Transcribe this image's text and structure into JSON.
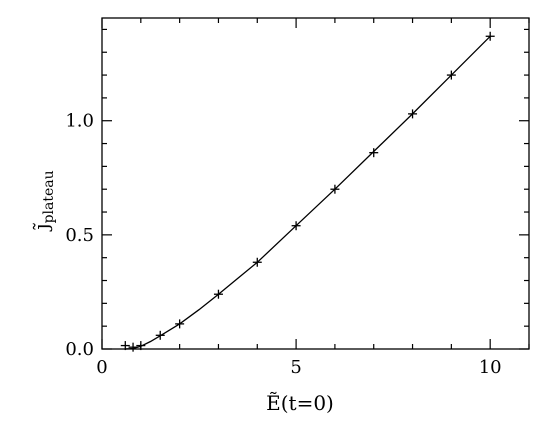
{
  "chart_data": {
    "type": "scatter",
    "title": "",
    "xlabel": "Ẽ(t=0)",
    "ylabel_main": "j̃",
    "ylabel_sub": "plateau",
    "xlim": [
      0,
      11
    ],
    "ylim": [
      0,
      1.45
    ],
    "x_ticks": [
      {
        "value": 0,
        "label": "0"
      },
      {
        "value": 5,
        "label": "5"
      },
      {
        "value": 10,
        "label": "10"
      }
    ],
    "y_ticks": [
      {
        "value": 0,
        "label": "0.0"
      },
      {
        "value": 0.5,
        "label": "0.5"
      },
      {
        "value": 1.0,
        "label": "1.0"
      }
    ],
    "x_minor_step": 1,
    "y_minor_step": 0.1,
    "grid": false,
    "series": [
      {
        "marker": "plus",
        "color": "#000000",
        "points": [
          {
            "x": 0.6,
            "y": 0.015
          },
          {
            "x": 0.8,
            "y": 0.008
          },
          {
            "x": 1.0,
            "y": 0.015
          },
          {
            "x": 1.5,
            "y": 0.06
          },
          {
            "x": 2.0,
            "y": 0.11
          },
          {
            "x": 3.0,
            "y": 0.24
          },
          {
            "x": 4.0,
            "y": 0.38
          },
          {
            "x": 5.0,
            "y": 0.54
          },
          {
            "x": 6.0,
            "y": 0.7
          },
          {
            "x": 7.0,
            "y": 0.86
          },
          {
            "x": 8.0,
            "y": 1.03
          },
          {
            "x": 9.0,
            "y": 1.2
          },
          {
            "x": 10.0,
            "y": 1.37
          }
        ]
      },
      {
        "marker": "line",
        "color": "#000000",
        "points": [
          {
            "x": 0.6,
            "y": 0.0
          },
          {
            "x": 0.8,
            "y": 0.002
          },
          {
            "x": 1.0,
            "y": 0.012
          },
          {
            "x": 1.25,
            "y": 0.033
          },
          {
            "x": 1.5,
            "y": 0.058
          },
          {
            "x": 2.0,
            "y": 0.11
          },
          {
            "x": 2.5,
            "y": 0.172
          },
          {
            "x": 3.0,
            "y": 0.24
          },
          {
            "x": 3.5,
            "y": 0.31
          },
          {
            "x": 4.0,
            "y": 0.38
          },
          {
            "x": 5.0,
            "y": 0.54
          },
          {
            "x": 6.0,
            "y": 0.7
          },
          {
            "x": 7.0,
            "y": 0.865
          },
          {
            "x": 8.0,
            "y": 1.03
          },
          {
            "x": 9.0,
            "y": 1.2
          },
          {
            "x": 10.0,
            "y": 1.37
          }
        ]
      }
    ]
  }
}
